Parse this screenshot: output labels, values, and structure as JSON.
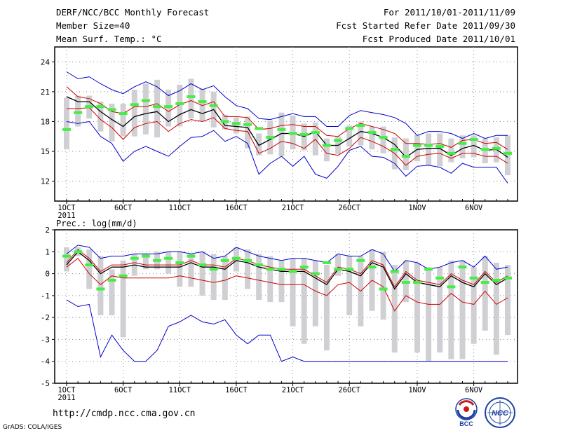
{
  "header": {
    "title": "DERF/NCC/BCC Monthly Forecast",
    "member_size": "Member Size=40",
    "variable": "Mean Surf. Temp.: °C",
    "period": "For 2011/10/01-2011/11/09",
    "fcst_started": "Fcst Started Refer Date 2011/09/30",
    "fcst_produced": "Fcst Produced Date 2011/10/01"
  },
  "footer": {
    "url": "http://cmdp.ncc.cma.gov.cn",
    "grads": "GrADS: COLA/IGES",
    "logo_bcc": "BCC",
    "logo_ncc": "NCC"
  },
  "colors": {
    "ensemble_mean": "#000000",
    "spread_band": "#cc0000",
    "envelope": "#0000cc",
    "member_range": "#d0d0d4",
    "observation": "#44ee44"
  },
  "chart_data": [
    {
      "type": "line",
      "title": "Mean Surf. Temp.: °C",
      "xlabel": "",
      "ylabel": "°C",
      "days": 40,
      "ylim": [
        10,
        25.5
      ],
      "yticks": [
        12,
        15,
        18,
        21,
        24
      ],
      "xticks": [
        {
          "day": 1,
          "label": "1OCT",
          "sub": "2011"
        },
        {
          "day": 6,
          "label": "6OCT"
        },
        {
          "day": 11,
          "label": "11OCT"
        },
        {
          "day": 16,
          "label": "16OCT"
        },
        {
          "day": 21,
          "label": "21OCT"
        },
        {
          "day": 26,
          "label": "26OCT"
        },
        {
          "day": 32,
          "label": "1NOV"
        },
        {
          "day": 37,
          "label": "6NOV"
        }
      ],
      "series": [
        {
          "name": "envelope-max",
          "color": "#0000cc",
          "values": [
            23,
            22.3,
            22.5,
            21.8,
            21.2,
            20.8,
            21.5,
            22,
            21.5,
            20.6,
            21.1,
            21.8,
            21.2,
            21.6,
            20.5,
            19.6,
            19.3,
            18.3,
            18.2,
            18.5,
            18.8,
            18.5,
            18.5,
            17.5,
            17.5,
            18.6,
            19.1,
            18.9,
            18.7,
            18.4,
            17.8,
            16.6,
            17,
            17,
            16.8,
            16.3,
            16.8,
            16.3,
            16.6,
            16.6
          ]
        },
        {
          "name": "spread-upper",
          "color": "#cc0000",
          "values": [
            21.5,
            20.5,
            20.3,
            19.8,
            19,
            18.8,
            19.5,
            19.5,
            19.8,
            19,
            19.7,
            20.1,
            19.6,
            20,
            18.5,
            18.5,
            18.4,
            17.2,
            17.3,
            17.6,
            17.7,
            17.5,
            17.5,
            16.6,
            16.5,
            17.3,
            17.8,
            17.5,
            17.2,
            16.8,
            15.8,
            15.8,
            15.7,
            15.8,
            15.4,
            16.1,
            16.2,
            15.8,
            15.9,
            15.2
          ]
        },
        {
          "name": "ensemble-mean",
          "color": "#000000",
          "values": [
            20.5,
            20,
            20,
            19,
            18.2,
            17.5,
            18.5,
            18.8,
            19,
            18,
            18.7,
            19.2,
            18.8,
            19.2,
            17.6,
            17.5,
            17.4,
            15.6,
            16.2,
            16.8,
            16.8,
            16.5,
            17,
            15.6,
            15.6,
            16.3,
            17,
            16.8,
            16.4,
            15.7,
            14.4,
            15.2,
            15.3,
            15.3,
            14.6,
            15.3,
            15.6,
            15.1,
            15.2,
            14.4
          ]
        },
        {
          "name": "spread-lower",
          "color": "#cc0000",
          "values": [
            19.3,
            19.3,
            19.4,
            18.2,
            17.4,
            16.2,
            17.4,
            17.8,
            18,
            17,
            17.8,
            18.2,
            18,
            18.4,
            17.3,
            17.1,
            17,
            14.8,
            15.3,
            16,
            15.8,
            15.3,
            16.2,
            14.8,
            14.6,
            15.3,
            16.4,
            16,
            15.5,
            14.8,
            13.6,
            14.5,
            14.7,
            14.8,
            14.3,
            14.8,
            14.8,
            14.5,
            14.5,
            13.8
          ]
        },
        {
          "name": "envelope-min",
          "color": "#0000cc",
          "values": [
            18,
            17.8,
            18,
            16.5,
            15.8,
            14,
            15,
            15.5,
            15,
            14.5,
            15.5,
            16.4,
            16.5,
            17.1,
            16,
            16.5,
            15.8,
            12.7,
            13.8,
            14.5,
            13.5,
            14.5,
            12.7,
            12.3,
            13.5,
            15.1,
            15.5,
            14.5,
            14.4,
            13.8,
            12.5,
            13.5,
            13.6,
            13.4,
            12.8,
            13.8,
            13.4,
            13.4,
            13.4,
            11.8
          ]
        }
      ],
      "member_range": {
        "low": [
          15.2,
          17.5,
          18.3,
          17,
          16,
          16.5,
          16.5,
          16.7,
          16.4,
          17.5,
          17.5,
          18.3,
          18,
          17.4,
          17.2,
          16.8,
          15.3,
          14.6,
          14.7,
          14.5,
          15.2,
          15.1,
          14.6,
          14,
          14.7,
          15.5,
          15.6,
          15.2,
          14.8,
          13.2,
          13.1,
          14,
          13.6,
          13.5,
          13.9,
          14.3,
          14.4,
          13.8,
          13.9,
          12.6
        ],
        "high": [
          20.4,
          20.6,
          20.6,
          20,
          19.8,
          19.8,
          21.2,
          21.8,
          22.2,
          21.2,
          21.7,
          22.3,
          21.3,
          21,
          18.7,
          18.4,
          18.5,
          16.8,
          18.1,
          18.9,
          18.6,
          17.8,
          17.9,
          16.3,
          16.5,
          17.6,
          18,
          17.5,
          17.5,
          16.4,
          16.3,
          16.7,
          16.8,
          16.8,
          16.3,
          16.6,
          16.6,
          16.3,
          16.4,
          16.6
        ]
      },
      "observation": [
        17.2,
        18.9,
        19.5,
        19.5,
        19.2,
        18.8,
        19.7,
        20.1,
        19.5,
        19.5,
        19.8,
        20.5,
        20,
        19.6,
        18,
        17.8,
        17.7,
        17.3,
        16.4,
        17.2,
        16.8,
        16.7,
        16.9,
        15.6,
        16.1,
        17.3,
        17.6,
        16.9,
        16.4,
        15.2,
        14.5,
        15.6,
        15.6,
        15.5,
        14.8,
        15.8,
        16.2,
        15.2,
        15.3,
        14.8
      ]
    },
    {
      "type": "line",
      "title": "Prec.: log(mm/d)",
      "xlabel": "",
      "ylabel": "log(mm/d)",
      "days": 40,
      "ylim": [
        -5,
        2
      ],
      "yticks": [
        -5,
        -4,
        -3,
        -2,
        -1,
        0,
        1,
        2
      ],
      "xticks": [
        {
          "day": 1,
          "label": "1OCT",
          "sub": "2011"
        },
        {
          "day": 6,
          "label": "6OCT"
        },
        {
          "day": 11,
          "label": "11OCT"
        },
        {
          "day": 16,
          "label": "16OCT"
        },
        {
          "day": 21,
          "label": "21OCT"
        },
        {
          "day": 26,
          "label": "26OCT"
        },
        {
          "day": 32,
          "label": "1NOV"
        },
        {
          "day": 37,
          "label": "6NOV"
        }
      ],
      "series": [
        {
          "name": "envelope-max",
          "color": "#0000cc",
          "values": [
            0.9,
            1.3,
            1.2,
            0.7,
            0.8,
            0.8,
            0.9,
            0.9,
            0.9,
            1,
            1,
            0.9,
            1,
            0.7,
            0.8,
            1.2,
            1,
            0.8,
            0.7,
            0.6,
            0.7,
            0.7,
            0.6,
            0.5,
            0.9,
            0.8,
            0.8,
            1.1,
            0.9,
            0.1,
            0.6,
            0.5,
            0.2,
            0.3,
            0.5,
            0.6,
            0.3,
            0.8,
            0.2,
            0.3
          ]
        },
        {
          "name": "ensemble-mean",
          "color": "#000000",
          "values": [
            0.4,
            1,
            0.6,
            0,
            0.3,
            0.3,
            0.4,
            0.3,
            0.3,
            0.3,
            0.3,
            0.5,
            0.3,
            0.3,
            0.2,
            0.6,
            0.5,
            0.3,
            0.2,
            0.1,
            0.1,
            0.1,
            -0.2,
            -0.5,
            0.2,
            0.1,
            -0.1,
            0.5,
            0.3,
            -0.7,
            0,
            -0.4,
            -0.5,
            -0.6,
            -0.1,
            -0.4,
            -0.6,
            0,
            -0.5,
            -0.2
          ]
        },
        {
          "name": "spread-upper",
          "color": "#cc0000",
          "values": [
            0.5,
            1.1,
            0.7,
            0.1,
            0.4,
            0.4,
            0.5,
            0.4,
            0.4,
            0.4,
            0.4,
            0.6,
            0.4,
            0.4,
            0.3,
            0.7,
            0.6,
            0.4,
            0.3,
            0.2,
            0.2,
            0.2,
            -0.1,
            -0.4,
            0.3,
            0.2,
            0,
            0.6,
            0.4,
            -0.6,
            0.1,
            -0.3,
            -0.4,
            -0.5,
            0,
            -0.3,
            -0.5,
            0.1,
            -0.4,
            -0.1
          ]
        },
        {
          "name": "spread-lower",
          "color": "#cc0000",
          "values": [
            0.3,
            0.7,
            0,
            -0.5,
            -0.1,
            -0.2,
            -0.2,
            -0.2,
            -0.2,
            -0.2,
            -0.1,
            -0.2,
            -0.3,
            -0.4,
            -0.3,
            -0.1,
            -0.2,
            -0.3,
            -0.4,
            -0.5,
            -0.5,
            -0.5,
            -0.8,
            -1,
            -0.5,
            -0.4,
            -0.8,
            -0.3,
            -0.6,
            -1.7,
            -1,
            -1.3,
            -1.4,
            -1.4,
            -0.9,
            -1.3,
            -1.4,
            -0.8,
            -1.4,
            -1.1
          ]
        },
        {
          "name": "envelope-min",
          "color": "#0000cc",
          "values": [
            -1.2,
            -1.5,
            -1.4,
            -3.8,
            -2.8,
            -3.5,
            -4,
            -4,
            -3.5,
            -2.4,
            -2.2,
            -1.9,
            -2.2,
            -2.3,
            -2.1,
            -2.8,
            -3.2,
            -2.8,
            -2.8,
            -4,
            -3.8,
            -4,
            -4,
            -4,
            -4,
            -4,
            -4,
            -4,
            -4,
            -4,
            -4,
            -4,
            -4,
            -4,
            -4,
            -4,
            -4,
            -4,
            -4,
            -4
          ]
        }
      ],
      "member_range": {
        "low": [
          0.1,
          0.8,
          -0.7,
          -1.9,
          -1.9,
          -2.9,
          -0.1,
          0.2,
          0.2,
          0,
          -0.6,
          -0.6,
          -1,
          -1.2,
          -1.2,
          0.1,
          -0.7,
          -1.2,
          -1.3,
          -1.3,
          -2.4,
          -3.2,
          -2.4,
          -3.5,
          -0.1,
          -1.9,
          -2.4,
          -1.7,
          -2.1,
          -3.6,
          -1.3,
          -3.6,
          -4,
          -3.6,
          -3.9,
          -3.9,
          -3.2,
          -2.6,
          -3.7,
          -2.8
        ],
        "high": [
          1.2,
          1.2,
          1.1,
          0.8,
          0.2,
          0.6,
          0.9,
          0.9,
          1,
          1,
          1,
          0.9,
          1,
          0.9,
          0.8,
          1.2,
          1.1,
          0.9,
          0.8,
          0.6,
          0.7,
          0.7,
          0.6,
          0.4,
          0.9,
          0.8,
          0.8,
          1.1,
          1,
          0.4,
          0.6,
          0.5,
          0.3,
          0.3,
          0.6,
          0.6,
          0.3,
          0.8,
          0.5,
          0.4
        ]
      },
      "observation": [
        0.8,
        1,
        0.4,
        -0.7,
        -0.3,
        -0.1,
        0.7,
        0.8,
        0.6,
        0.7,
        0.5,
        0.8,
        0.4,
        0.2,
        0.6,
        0.7,
        0.6,
        0.4,
        0.2,
        0.2,
        0.1,
        0.3,
        0,
        0.5,
        0.2,
        0.2,
        0.6,
        0.3,
        -0.7,
        0.1,
        -0.4,
        -0.4,
        0.2,
        -0.2,
        -0.6,
        0.3,
        -0.2,
        -0.4,
        -0.3,
        -0.2
      ]
    }
  ]
}
